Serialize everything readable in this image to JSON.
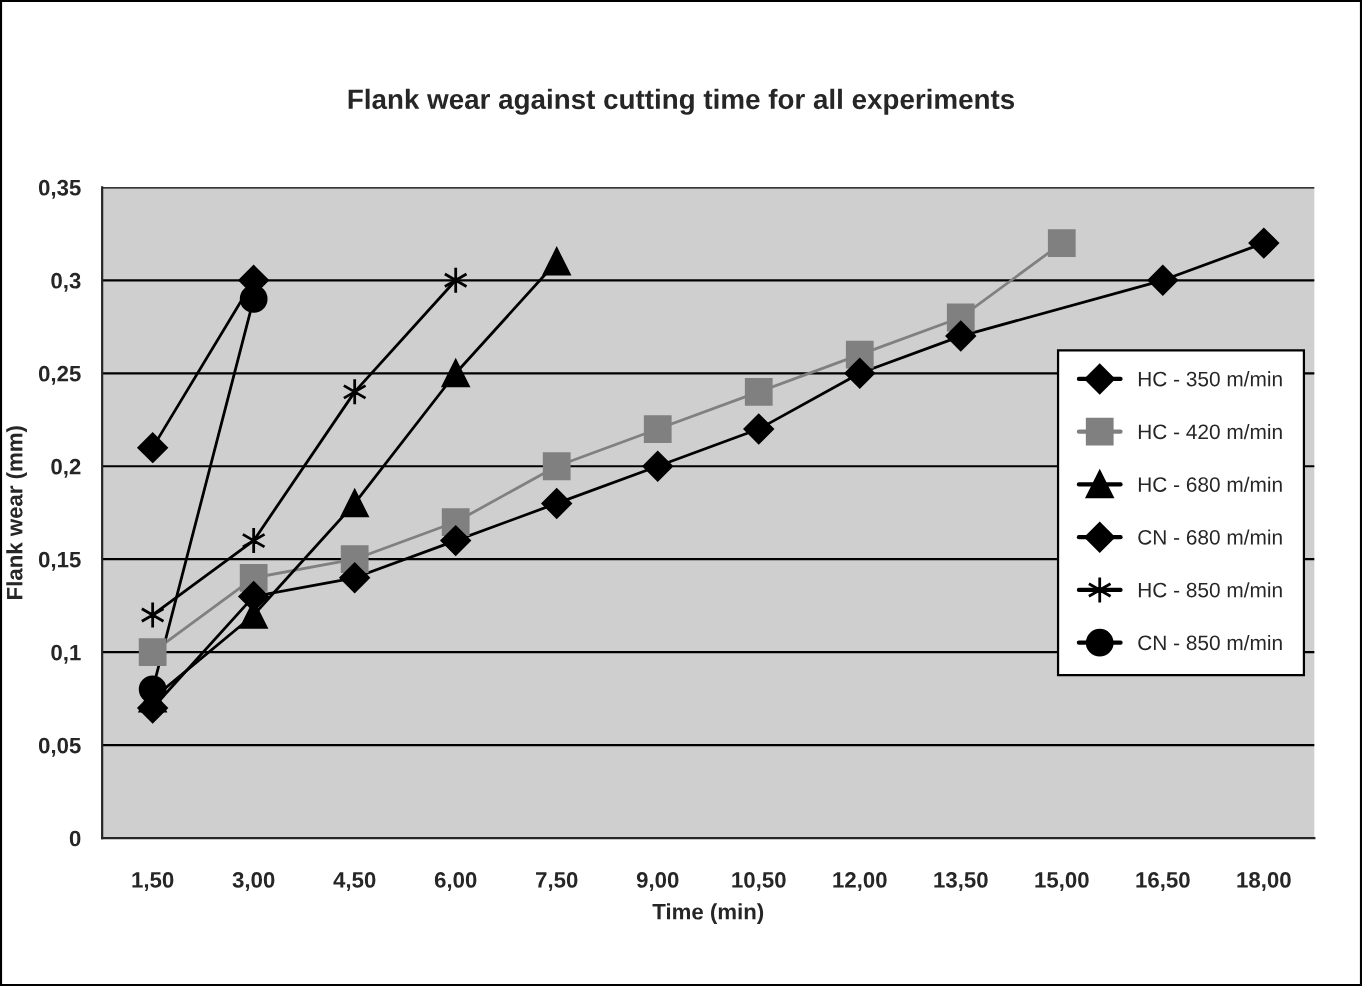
{
  "chart_data": {
    "type": "line",
    "title": "Flank wear against cutting time for all experiments",
    "xlabel": "Time (min)",
    "ylabel": "Flank wear (mm)",
    "categories": [
      "1,50",
      "3,00",
      "4,50",
      "6,00",
      "7,50",
      "9,00",
      "10,50",
      "12,00",
      "13,50",
      "15,00",
      "16,50",
      "18,00"
    ],
    "series": [
      {
        "name": "HC - 350 m/min",
        "color": "#000000",
        "marker": "diamond",
        "values": [
          0.07,
          0.13,
          0.14,
          0.16,
          0.18,
          0.2,
          0.22,
          0.25,
          0.27,
          null,
          0.3,
          0.32
        ]
      },
      {
        "name": "HC - 420 m/min",
        "color": "#808080",
        "marker": "square",
        "values": [
          0.1,
          0.14,
          0.15,
          0.17,
          0.2,
          0.22,
          0.24,
          0.26,
          0.28,
          0.32,
          null,
          null
        ]
      },
      {
        "name": "HC - 680 m/min",
        "color": "#000000",
        "marker": "triangle",
        "values": [
          0.075,
          0.12,
          0.18,
          0.25,
          0.31,
          null,
          null,
          null,
          null,
          null,
          null,
          null
        ]
      },
      {
        "name": "CN - 680 m/min",
        "color": "#000000",
        "marker": "diamond",
        "values": [
          0.21,
          0.3,
          null,
          null,
          null,
          null,
          null,
          null,
          null,
          null,
          null,
          null
        ]
      },
      {
        "name": "HC - 850 m/min",
        "color": "#000000",
        "marker": "cross",
        "values": [
          0.12,
          0.16,
          0.24,
          0.3,
          null,
          null,
          null,
          null,
          null,
          null,
          null,
          null
        ]
      },
      {
        "name": "CN - 850 m/min",
        "color": "#000000",
        "marker": "circle",
        "values": [
          0.08,
          0.29,
          null,
          null,
          null,
          null,
          null,
          null,
          null,
          null,
          null,
          null
        ]
      }
    ],
    "ylim": [
      0,
      0.35
    ],
    "yticks": [
      {
        "value": 0,
        "label": "0"
      },
      {
        "value": 0.05,
        "label": "0,05"
      },
      {
        "value": 0.1,
        "label": "0,1"
      },
      {
        "value": 0.15,
        "label": "0,15"
      },
      {
        "value": 0.2,
        "label": "0,2"
      },
      {
        "value": 0.25,
        "label": "0,25"
      },
      {
        "value": 0.3,
        "label": "0,3"
      },
      {
        "value": 0.35,
        "label": "0,35"
      }
    ],
    "grid": "y",
    "legend": "right"
  }
}
